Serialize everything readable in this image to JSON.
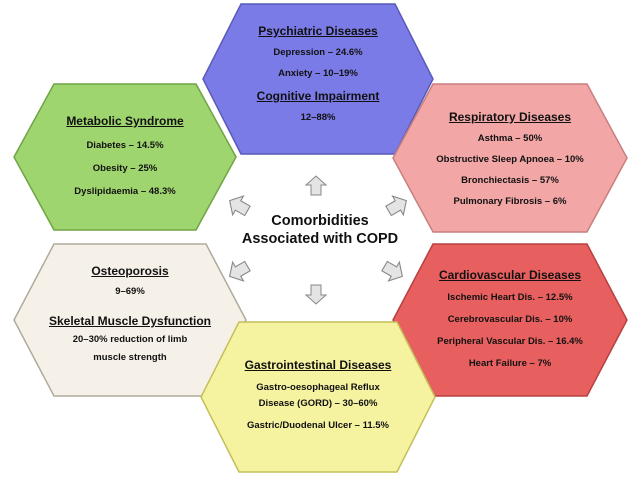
{
  "center": {
    "line1": "Comorbidities",
    "line2": "Associated with COPD"
  },
  "hexagons": {
    "psychiatric": {
      "color": "#7b7be8",
      "title": "Psychiatric Diseases",
      "items": [
        "Depression – 24.6%",
        "Anxiety – 10–19%"
      ],
      "subtitle": "Cognitive Impairment",
      "subitems": [
        "12–88%"
      ]
    },
    "metabolic": {
      "color": "#9fd56f",
      "title": "Metabolic Syndrome",
      "items": [
        "Diabetes – 14.5%",
        "Obesity – 25%",
        "Dyslipidaemia – 48.3%"
      ]
    },
    "respiratory": {
      "color": "#f2a6a6",
      "title": "Respiratory Diseases",
      "items": [
        "Asthma – 50%",
        "Obstructive Sleep Apnoea – 10%",
        "Bronchiectasis – 57%",
        "Pulmonary Fibrosis – 6%"
      ]
    },
    "osteoporosis": {
      "color": "#f6f1e8",
      "title": "Osteoporosis",
      "items": [
        "9–69%"
      ],
      "subtitle": "Skeletal Muscle Dysfunction",
      "subitems": [
        "20–30% reduction of limb",
        "muscle strength"
      ]
    },
    "cardiovascular": {
      "color": "#e85f5f",
      "title": "Cardiovascular Diseases",
      "items": [
        "Ischemic Heart Dis. – 12.5%",
        "Cerebrovascular Dis. – 10%",
        "Peripheral Vascular Dis. – 16.4%",
        "Heart Failure – 7%"
      ]
    },
    "gastro": {
      "color": "#f5f2a0",
      "title": "Gastrointestinal Diseases",
      "items": [
        "Gastro-oesophageal Reflux",
        "Disease (GORD) – 30–60%"
      ],
      "subitems": [
        "Gastric/Duodenal Ulcer – 11.5%"
      ]
    }
  }
}
